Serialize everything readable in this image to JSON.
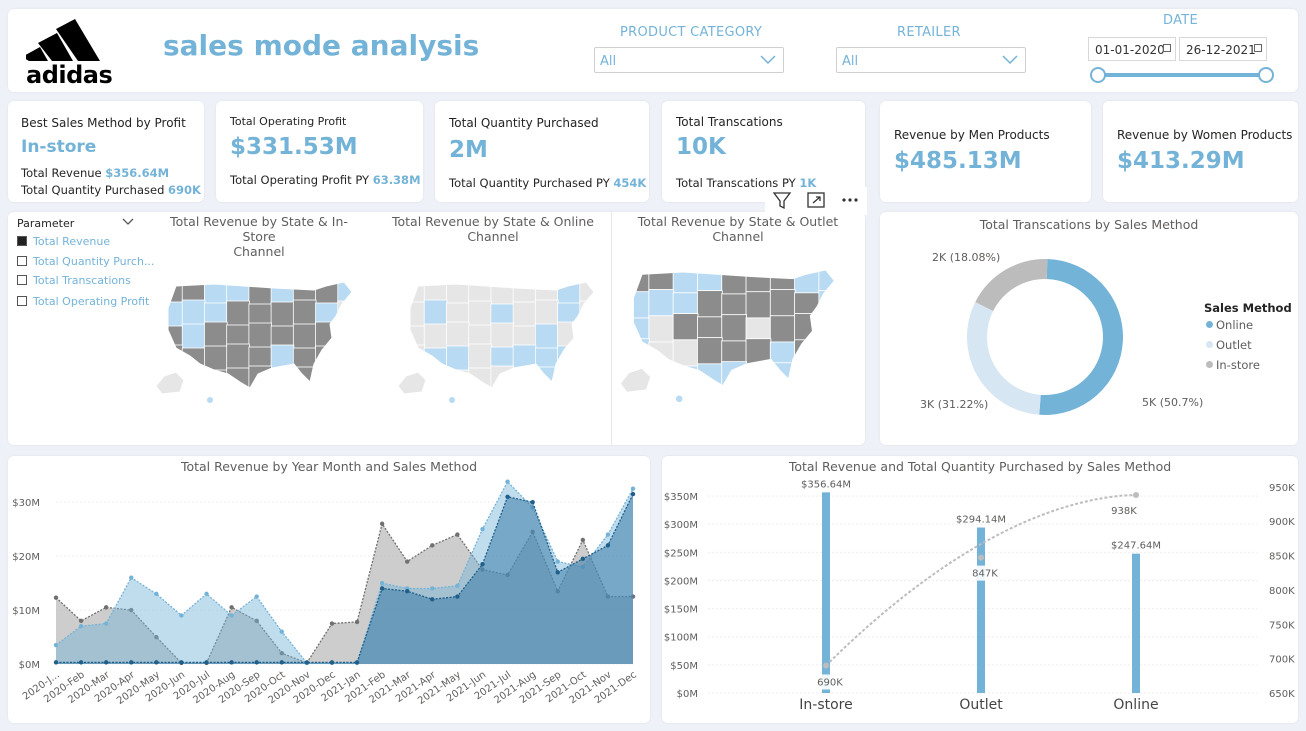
{
  "header": {
    "brand": "adidas",
    "title": "sales mode analysis",
    "product_category": {
      "label": "PRODUCT CATEGORY",
      "value": "All"
    },
    "retailer": {
      "label": "RETAILER",
      "value": "All"
    },
    "date": {
      "label": "DATE",
      "start": "01-01-2020",
      "end": "26-12-2021"
    }
  },
  "kpis": {
    "best": {
      "title": "Best Sales Method by Profit",
      "value": "In-store",
      "rev_label": "Total Revenue",
      "rev_value": "$356.64M",
      "qty_label": "Total Quantity Purchased",
      "qty_value": "690K"
    },
    "profit": {
      "title": "Total Operating Profit",
      "value": "$331.53M",
      "py_label": "Total Operating Profit PY",
      "py_value": "63.38M"
    },
    "quantity": {
      "title": "Total Quantity Purchased",
      "value": "2M",
      "py_label": "Total Quantity Purchased PY",
      "py_value": "454K"
    },
    "transactions": {
      "title": "Total Transcations",
      "value": "10K",
      "py_label": "Total Transcations PY",
      "py_value": "1K"
    },
    "men": {
      "title": "Revenue by Men Products",
      "value": "$485.13M"
    },
    "women": {
      "title": "Revenue by Women Products",
      "value": "$413.29M"
    }
  },
  "parameter": {
    "title": "Parameter",
    "items": [
      {
        "label": "Total Revenue",
        "selected": true
      },
      {
        "label": "Total Quantity Purch...",
        "selected": false
      },
      {
        "label": "Total Transcations",
        "selected": false
      },
      {
        "label": "Total Operating Profit",
        "selected": false
      }
    ]
  },
  "maps": [
    {
      "title_1": "Total Revenue by State & In-Store",
      "title_2": "Channel"
    },
    {
      "title_1": "Total Revenue by State & Online",
      "title_2": "Channel"
    },
    {
      "title_1": "Total Revenue by State & Outlet Channel",
      "title_2": ""
    }
  ],
  "visual_toolbar": {
    "filter": "filter-icon",
    "focus": "focus-mode-icon",
    "more": "more-options-icon"
  },
  "colors": {
    "online": "#74b3d8",
    "outlet": "#d6e6f2",
    "instore": "#bcbcbc",
    "dark": "#1f5f8a",
    "gray_dark": "#707070",
    "map_dark": "#8c8c8c",
    "map_light": "#e6e6e6",
    "map_blue": "#b8daf3"
  },
  "chart_data": [
    {
      "type": "pie",
      "title": "Total Transcations by Sales Method",
      "legend_title": "Sales Method",
      "legend_position": "right",
      "slices": [
        {
          "name": "Online",
          "value": 5,
          "label": "5K (50.7%)",
          "percent": 50.7
        },
        {
          "name": "Outlet",
          "value": 3,
          "label": "3K (31.22%)",
          "percent": 31.22
        },
        {
          "name": "In-store",
          "value": 2,
          "label": "2K (18.08%)",
          "percent": 18.08
        }
      ]
    },
    {
      "type": "area",
      "title": "Total Revenue by Year Month and Sales Method",
      "categories": [
        "2020-J...",
        "2020-Feb",
        "2020-Mar",
        "2020-Apr",
        "2020-May",
        "2020-Jun",
        "2020-Jul",
        "2020-Aug",
        "2020-Sep",
        "2020-Oct",
        "2020-Nov",
        "2020-Dec",
        "2021-Jan",
        "2021-Feb",
        "2021-Mar",
        "2021-Apr",
        "2021-May",
        "2021-Jun",
        "2021-Jul",
        "2021-Aug",
        "2021-Sep",
        "2021-Oct",
        "2021-Nov",
        "2021-Dec"
      ],
      "yticks": [
        "$0M",
        "$10M",
        "$20M",
        "$30M"
      ],
      "ylim": [
        0,
        33
      ],
      "series": [
        {
          "name": "In-store",
          "values": [
            12.3,
            8,
            10.5,
            10,
            5,
            0.2,
            0.2,
            10.5,
            8,
            2,
            0.2,
            7.5,
            7.8,
            26,
            19,
            22,
            24,
            17.5,
            16.5,
            24.5,
            13.5,
            23,
            12.5,
            12.5
          ]
        },
        {
          "name": "Outlet",
          "values": [
            3.5,
            7,
            7.5,
            16,
            13,
            9,
            13,
            9,
            12.5,
            6,
            0.2,
            0.2,
            0.2,
            15,
            14,
            14,
            14.5,
            25,
            33.8,
            29,
            19,
            18,
            24,
            32.5
          ]
        },
        {
          "name": "Online",
          "values": [
            0.3,
            0.3,
            0.3,
            0.3,
            0.3,
            0.3,
            0.3,
            0.3,
            0.3,
            0.3,
            0.3,
            0.3,
            0.3,
            14,
            13.5,
            12,
            12.5,
            18.5,
            31,
            30,
            17,
            19.5,
            22,
            31.5
          ]
        }
      ]
    },
    {
      "type": "bar",
      "title": "Total Revenue and Total Quantity Purchased by Sales Method",
      "categories": [
        "In-store",
        "Outlet",
        "Online"
      ],
      "series": [
        {
          "name": "Total Revenue",
          "values": [
            356.64,
            294.14,
            247.64
          ],
          "labels": [
            "$356.64M",
            "$294.14M",
            "$247.64M"
          ]
        },
        {
          "name": "Total Quantity Purchased",
          "values": [
            690,
            847,
            938
          ],
          "labels": [
            "690K",
            "847K",
            "938K"
          ]
        }
      ],
      "y1ticks": [
        "$0M",
        "$50M",
        "$100M",
        "$150M",
        "$200M",
        "$250M",
        "$300M",
        "$350M"
      ],
      "y1lim": [
        0,
        375
      ],
      "y2ticks": [
        "650K",
        "700K",
        "750K",
        "800K",
        "850K",
        "900K",
        "950K"
      ],
      "y2lim": [
        650,
        957
      ]
    }
  ]
}
